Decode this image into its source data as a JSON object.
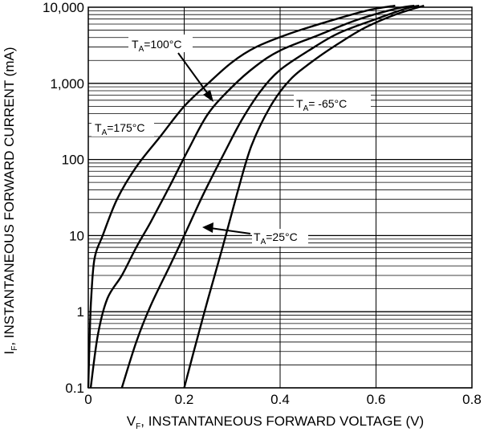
{
  "chart_data": {
    "type": "line",
    "title": "",
    "xlabel": "V",
    "xlabel_sub": "F",
    "xlabel_rest": ", INSTANTANEOUS FORWARD VOLTAGE (V)",
    "ylabel": "I",
    "ylabel_sub": "F",
    "ylabel_rest": ", INSTANTANEOUS FORWARD CURRENT (mA)",
    "xlim": [
      0,
      0.8
    ],
    "ylim": [
      0.1,
      10000
    ],
    "yscale": "log",
    "grid": true,
    "x_ticks": [
      0,
      0.2,
      0.4,
      0.6,
      0.8
    ],
    "x_tick_labels": [
      "0",
      "0.2",
      "0.4",
      "0.6",
      "0.8"
    ],
    "y_ticks": [
      0.1,
      1,
      10,
      100,
      1000,
      10000
    ],
    "y_tick_labels": [
      "0.1",
      "1",
      "10",
      "100",
      "1,000",
      "10,000"
    ],
    "series": [
      {
        "name": "TA=175°C",
        "points": [
          [
            0.0,
            0.1
          ],
          [
            0.003,
            0.5
          ],
          [
            0.006,
            1.5
          ],
          [
            0.013,
            5
          ],
          [
            0.03,
            10
          ],
          [
            0.06,
            30
          ],
          [
            0.1,
            80
          ],
          [
            0.15,
            200
          ],
          [
            0.2,
            500
          ],
          [
            0.25,
            1000
          ],
          [
            0.3,
            1900
          ],
          [
            0.35,
            3000
          ],
          [
            0.42,
            4500
          ],
          [
            0.5,
            6500
          ],
          [
            0.58,
            9000
          ],
          [
            0.64,
            10500
          ]
        ]
      },
      {
        "name": "TA=100°C",
        "points": [
          [
            0.005,
            0.1
          ],
          [
            0.02,
            0.5
          ],
          [
            0.04,
            1.5
          ],
          [
            0.07,
            3
          ],
          [
            0.1,
            7
          ],
          [
            0.13,
            15
          ],
          [
            0.17,
            45
          ],
          [
            0.21,
            140
          ],
          [
            0.25,
            400
          ],
          [
            0.3,
            900
          ],
          [
            0.35,
            1700
          ],
          [
            0.4,
            2700
          ],
          [
            0.48,
            4300
          ],
          [
            0.56,
            6800
          ],
          [
            0.64,
            9500
          ],
          [
            0.68,
            10500
          ]
        ]
      },
      {
        "name": "TA=25°C",
        "points": [
          [
            0.07,
            0.1
          ],
          [
            0.1,
            0.4
          ],
          [
            0.13,
            1.2
          ],
          [
            0.17,
            4
          ],
          [
            0.2,
            10
          ],
          [
            0.24,
            35
          ],
          [
            0.28,
            110
          ],
          [
            0.32,
            330
          ],
          [
            0.36,
            800
          ],
          [
            0.4,
            1500
          ],
          [
            0.46,
            2700
          ],
          [
            0.52,
            4500
          ],
          [
            0.6,
            7000
          ],
          [
            0.66,
            9500
          ],
          [
            0.69,
            10500
          ]
        ]
      },
      {
        "name": "TA=-65°C",
        "points": [
          [
            0.2,
            0.1
          ],
          [
            0.22,
            0.3
          ],
          [
            0.25,
            1.5
          ],
          [
            0.28,
            7
          ],
          [
            0.31,
            35
          ],
          [
            0.34,
            150
          ],
          [
            0.38,
            500
          ],
          [
            0.42,
            1100
          ],
          [
            0.47,
            2000
          ],
          [
            0.53,
            3600
          ],
          [
            0.58,
            5500
          ],
          [
            0.64,
            8000
          ],
          [
            0.7,
            10500
          ]
        ]
      }
    ],
    "annotations": [
      {
        "main": "T",
        "sub": "A",
        "rest": "=100°C"
      },
      {
        "main": "T",
        "sub": "A",
        "rest": "=175°C"
      },
      {
        "main": "T",
        "sub": "A",
        "rest": "= -65°C"
      },
      {
        "main": "T",
        "sub": "A",
        "rest": "=25°C"
      }
    ],
    "colors": {
      "line": "#000000",
      "grid": "#000000",
      "background": "#ffffff"
    }
  }
}
